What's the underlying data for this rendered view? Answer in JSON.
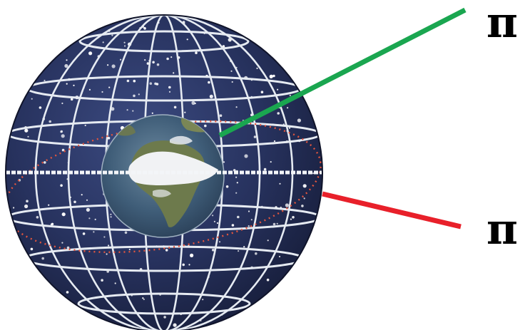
{
  "labels": {
    "upper": "π",
    "lower": "π"
  },
  "colors": {
    "background": "#ffffff",
    "sphere_dark": "#1a2347",
    "sphere_mid": "#2e3b6b",
    "grid_lines": "#e6ebf2",
    "stars": "#ffffff",
    "ecliptic_dots": "#e2553e",
    "upper_pointer": "#1aa650",
    "lower_pointer": "#e8202a",
    "ocean": "#3d5f7a",
    "land": "#6b7b4e",
    "clouds": "#f1f2f4",
    "label_text": "#000000"
  },
  "icons": {
    "sphere": "celestial-sphere-icon",
    "earth": "earth-globe-icon"
  }
}
